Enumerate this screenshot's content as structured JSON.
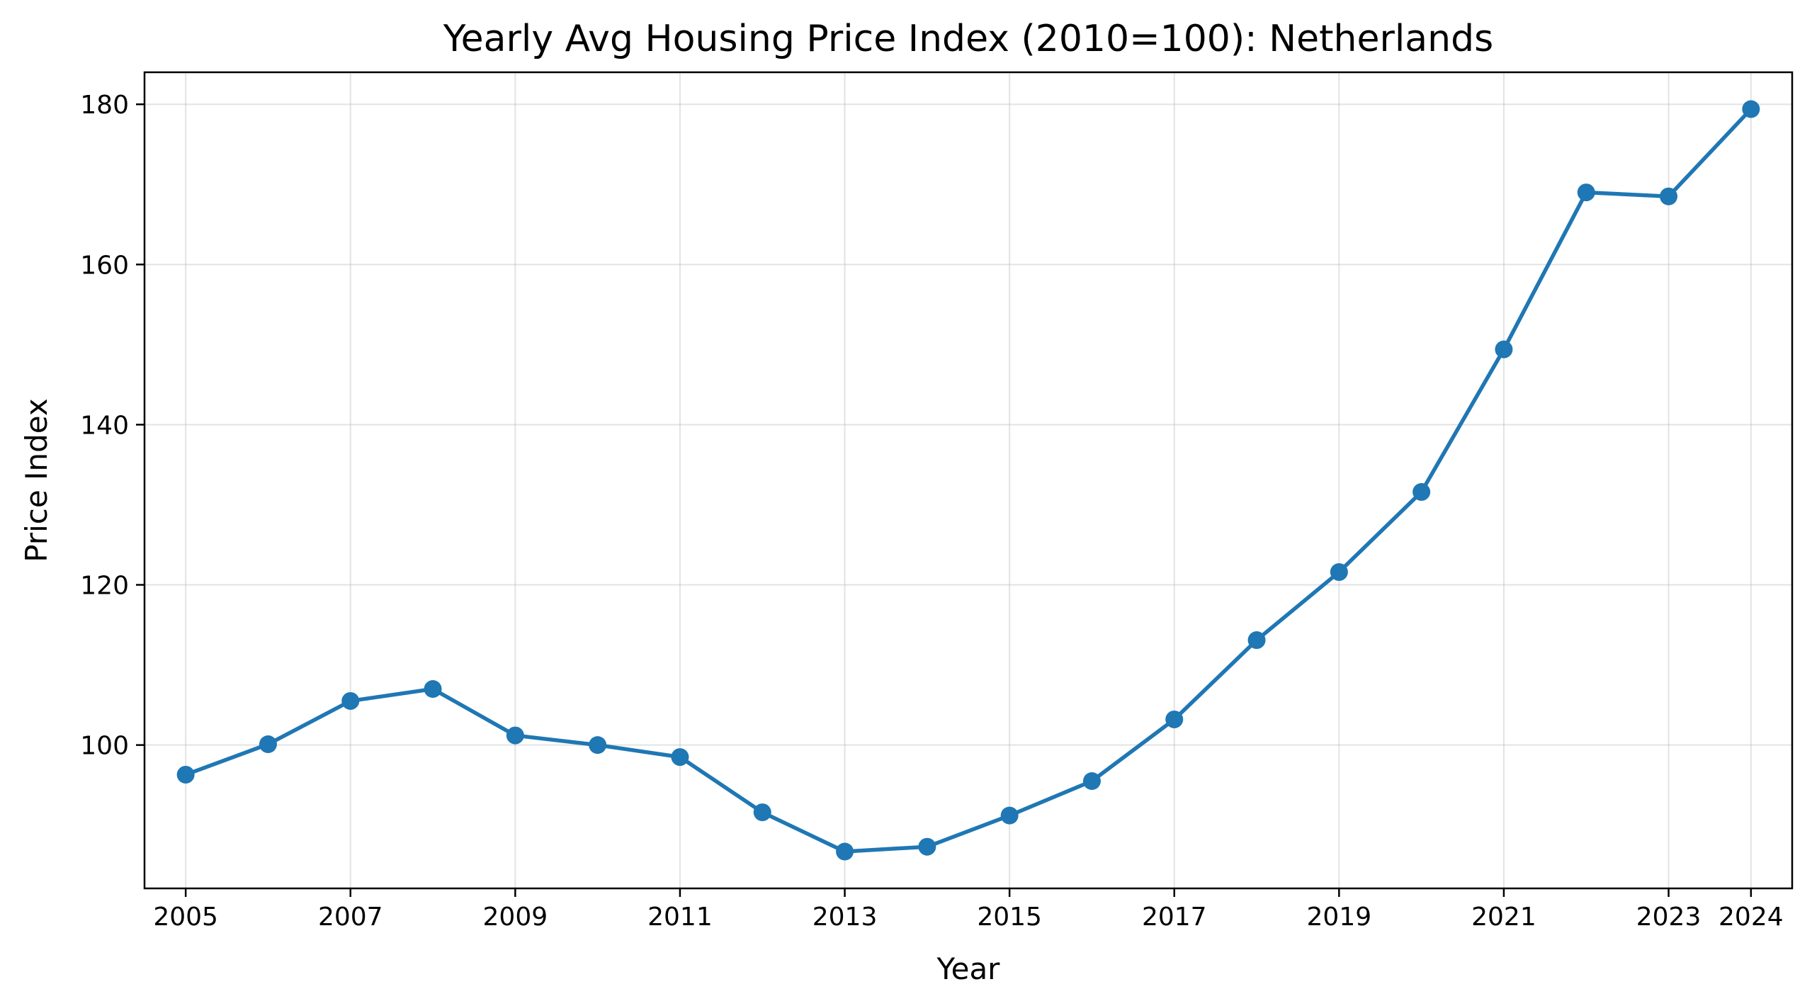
{
  "chart_data": {
    "type": "line",
    "title": "Yearly Avg Housing Price Index (2010=100): Netherlands",
    "xlabel": "Year",
    "ylabel": "Price Index",
    "x": [
      2005,
      2006,
      2007,
      2008,
      2009,
      2010,
      2011,
      2012,
      2013,
      2014,
      2015,
      2016,
      2017,
      2018,
      2019,
      2020,
      2021,
      2022,
      2023,
      2024
    ],
    "series": [
      {
        "values": [
          96.3,
          100.1,
          105.5,
          107.0,
          101.2,
          100.0,
          98.5,
          91.6,
          86.7,
          87.3,
          91.2,
          95.5,
          103.2,
          113.1,
          121.6,
          131.6,
          149.4,
          169.0,
          168.5,
          179.4
        ],
        "color": "#1f77b4"
      }
    ],
    "xticks": [
      2005,
      2007,
      2009,
      2011,
      2013,
      2015,
      2017,
      2019,
      2021,
      2023,
      2024
    ],
    "yticks": [
      100,
      120,
      140,
      160,
      180
    ],
    "xlim": [
      2004.5,
      2024.5
    ],
    "ylim": [
      82.1,
      184.0
    ],
    "grid": true,
    "legend": "none"
  }
}
